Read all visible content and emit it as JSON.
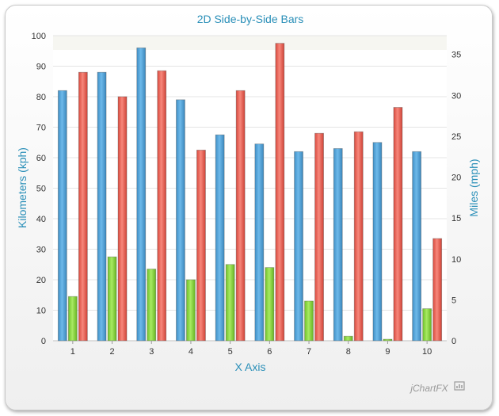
{
  "chart_data": {
    "type": "bar",
    "title": "2D Side-by-Side Bars",
    "xlabel": "X Axis",
    "ylabel": "Kilometers (kph)",
    "y2label": "Miles (mph)",
    "categories": [
      "1",
      "2",
      "3",
      "4",
      "5",
      "6",
      "7",
      "8",
      "9",
      "10"
    ],
    "ylim": [
      0,
      100
    ],
    "y2lim": [
      0,
      37.3
    ],
    "yticks": [
      0,
      10,
      20,
      30,
      40,
      50,
      60,
      70,
      80,
      90,
      100
    ],
    "y2ticks": [
      0,
      5,
      10,
      15,
      20,
      25,
      30,
      35
    ],
    "grid": true,
    "series": [
      {
        "color": "#5aa9dd",
        "values": [
          82,
          88,
          96,
          79,
          67.5,
          64.5,
          62,
          63,
          65,
          62
        ]
      },
      {
        "color": "#8fd845",
        "values": [
          14.5,
          27.5,
          23.5,
          20,
          25,
          24,
          13,
          1.5,
          0.5,
          10.5
        ]
      },
      {
        "color": "#ef6a5c",
        "values": [
          88,
          80,
          88.5,
          62.5,
          82,
          97.5,
          68,
          68.5,
          76.5,
          33.5
        ]
      }
    ]
  },
  "watermark": "jChartFX"
}
